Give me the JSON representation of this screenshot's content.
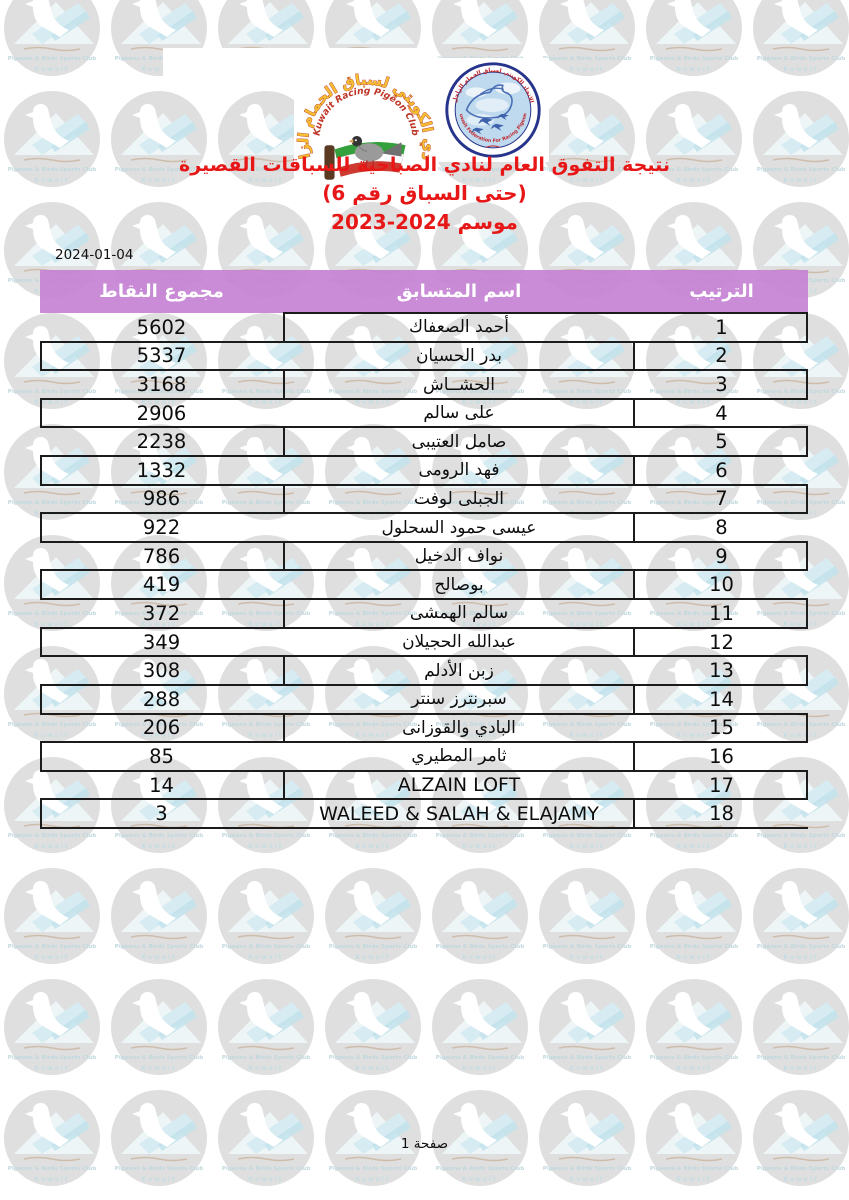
{
  "page": {
    "date": "2024-01-04",
    "footer": "صفحة 1"
  },
  "header": {
    "club_logo": {
      "arc_text": "النادي الكويتي لسباق الحمام الزاجل",
      "sub_text": "Kuwait Racing Pigeon Club"
    },
    "federation_logo": {
      "arc_text": "الاتحاد الكويتي لسباق الحمام الزاجل",
      "bottom_text": "Kuwait Federation For Racing Pigeons"
    },
    "title_line1": "نتيجة التفوق العام لنادي الصباحية للسباقات القصيرة",
    "title_line2": "(حتى السباق رقم 6)",
    "title_line3": "موسم 2024-2023"
  },
  "table": {
    "headers": {
      "points": "مجموع النقاط",
      "name": "اسم المتسابق",
      "rank": "الترتيب"
    },
    "rows": [
      {
        "rank": 1,
        "name": "أحمد الصعفاك",
        "points": 5602
      },
      {
        "rank": 2,
        "name": "بدر الحسيان",
        "points": 5337
      },
      {
        "rank": 3,
        "name": "الحشــاش",
        "points": 3168
      },
      {
        "rank": 4,
        "name": "على سالم",
        "points": 2906
      },
      {
        "rank": 5,
        "name": "صامل العتيبى",
        "points": 2238
      },
      {
        "rank": 6,
        "name": "فهد الرومى",
        "points": 1332
      },
      {
        "rank": 7,
        "name": "الجبلى لوفت",
        "points": 986
      },
      {
        "rank": 8,
        "name": "عيسى حمود السحلول",
        "points": 922
      },
      {
        "rank": 9,
        "name": "نواف الدخيل",
        "points": 786
      },
      {
        "rank": 10,
        "name": "بوصالح",
        "points": 419
      },
      {
        "rank": 11,
        "name": "سالم الهمشى",
        "points": 372
      },
      {
        "rank": 12,
        "name": "عبدالله الحجيلان",
        "points": 349
      },
      {
        "rank": 13,
        "name": "زبن الأدلم",
        "points": 308
      },
      {
        "rank": 14,
        "name": "سبرنترز سنتر",
        "points": 288
      },
      {
        "rank": 15,
        "name": "البادي والقوزانى",
        "points": 206
      },
      {
        "rank": 16,
        "name": "ثامر المطيري",
        "points": 85
      },
      {
        "rank": 17,
        "name": "ALZAIN LOFT",
        "points": 14
      },
      {
        "rank": 18,
        "name": "WALEED & SALAH & ELAJAMY",
        "points": 3
      }
    ]
  },
  "watermark": {
    "club_en": "Pigeons & Birds Sports Club",
    "country": "Kuwait"
  },
  "colors": {
    "header_bg": "rgba(197,129,212,0.92)",
    "title_red": "#E81717",
    "border": "#1b1b1b"
  }
}
